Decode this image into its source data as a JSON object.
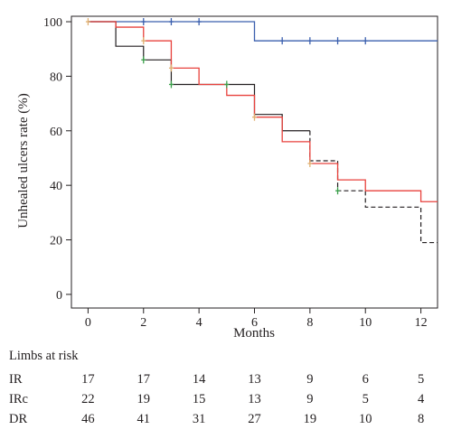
{
  "chart_data": {
    "type": "line",
    "subtype": "kaplan-meier step",
    "title": "",
    "xlabel": "Months",
    "ylabel": "Unhealed ulcers rate (%)",
    "xlim": [
      -0.6,
      12.6
    ],
    "ylim": [
      -5,
      102
    ],
    "xticks": [
      0,
      2,
      4,
      6,
      8,
      10,
      12
    ],
    "yticks": [
      0,
      20,
      40,
      60,
      80,
      100
    ],
    "grid": false,
    "legend": "none",
    "series": [
      {
        "color": "#3a5fae",
        "dash": "solid",
        "steps": [
          [
            0,
            100
          ],
          [
            6,
            93
          ],
          [
            12.6,
            93
          ]
        ],
        "censor": [
          [
            2,
            100
          ],
          [
            3,
            100
          ],
          [
            4,
            100
          ],
          [
            7,
            93
          ],
          [
            8,
            93
          ],
          [
            9,
            93
          ],
          [
            10,
            93
          ]
        ]
      },
      {
        "color": "#231f20",
        "dash": "mixed",
        "steps": [
          [
            0,
            100
          ],
          [
            1,
            91
          ],
          [
            2,
            86
          ],
          [
            3,
            77
          ],
          [
            6,
            66
          ],
          [
            7,
            60
          ],
          [
            8,
            49
          ],
          [
            9,
            38
          ],
          [
            10,
            32
          ],
          [
            12,
            19
          ],
          [
            12.6,
            19
          ]
        ],
        "dashed_from": 8,
        "censor": [
          [
            2,
            86
          ],
          [
            3,
            77
          ],
          [
            5,
            77
          ],
          [
            9,
            38
          ]
        ]
      },
      {
        "color": "#e8413c",
        "dash": "solid",
        "steps": [
          [
            0,
            100
          ],
          [
            1,
            98
          ],
          [
            2,
            93
          ],
          [
            3,
            83
          ],
          [
            4,
            77
          ],
          [
            5,
            73
          ],
          [
            6,
            65
          ],
          [
            7,
            56
          ],
          [
            8,
            48
          ],
          [
            9,
            42
          ],
          [
            10,
            38
          ],
          [
            12,
            34
          ],
          [
            12.6,
            34
          ]
        ],
        "censor": [
          [
            0,
            100
          ],
          [
            2,
            93
          ],
          [
            3,
            83
          ],
          [
            6,
            65
          ],
          [
            8,
            48
          ]
        ]
      }
    ],
    "censor_colors": {
      "blue": "#3a5fae",
      "green": "#3aa14a",
      "tan": "#e0b070"
    },
    "risk_table": {
      "title": "Limbs at risk",
      "months": [
        0,
        2,
        4,
        6,
        8,
        10,
        12
      ],
      "rows": [
        {
          "name": "IR",
          "values": [
            "17",
            "17",
            "14",
            "13",
            "9",
            "6",
            "5"
          ]
        },
        {
          "name": "IRc",
          "values": [
            "22",
            "19",
            "15",
            "13",
            "9",
            "5",
            "4"
          ]
        },
        {
          "name": "DR",
          "values": [
            "46",
            "41",
            "31",
            "27",
            "19",
            "10",
            "8"
          ]
        }
      ]
    }
  }
}
